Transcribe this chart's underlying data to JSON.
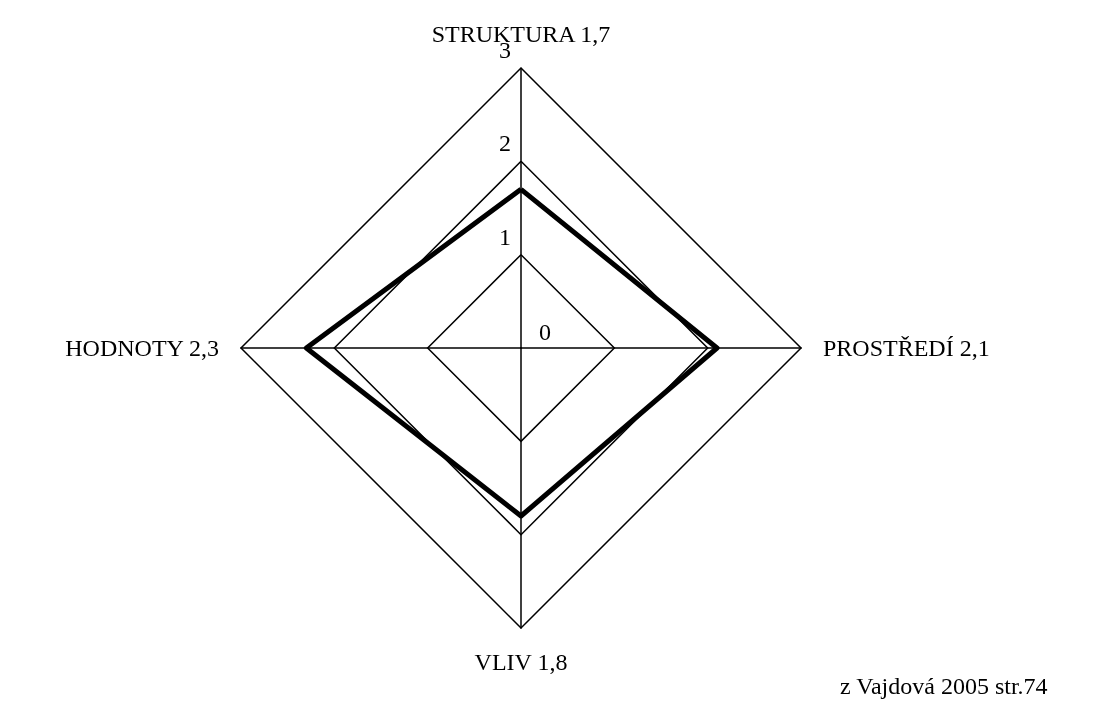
{
  "chart_data": {
    "type": "radar",
    "categories": [
      "STRUKTURA 1,7",
      "PROSTŘEDÍ 2,1",
      "VLIV 1,8",
      "HODNOTY 2,3"
    ],
    "series": [
      {
        "color": "#000000",
        "values": [
          1.7,
          2.1,
          1.8,
          2.3
        ]
      }
    ],
    "ylim": [
      0,
      3
    ],
    "yticks": [
      0,
      1,
      2,
      3
    ],
    "annotations": [
      "z Vajdová 2005 str.74"
    ],
    "marker": "none",
    "line_style": "solid"
  }
}
